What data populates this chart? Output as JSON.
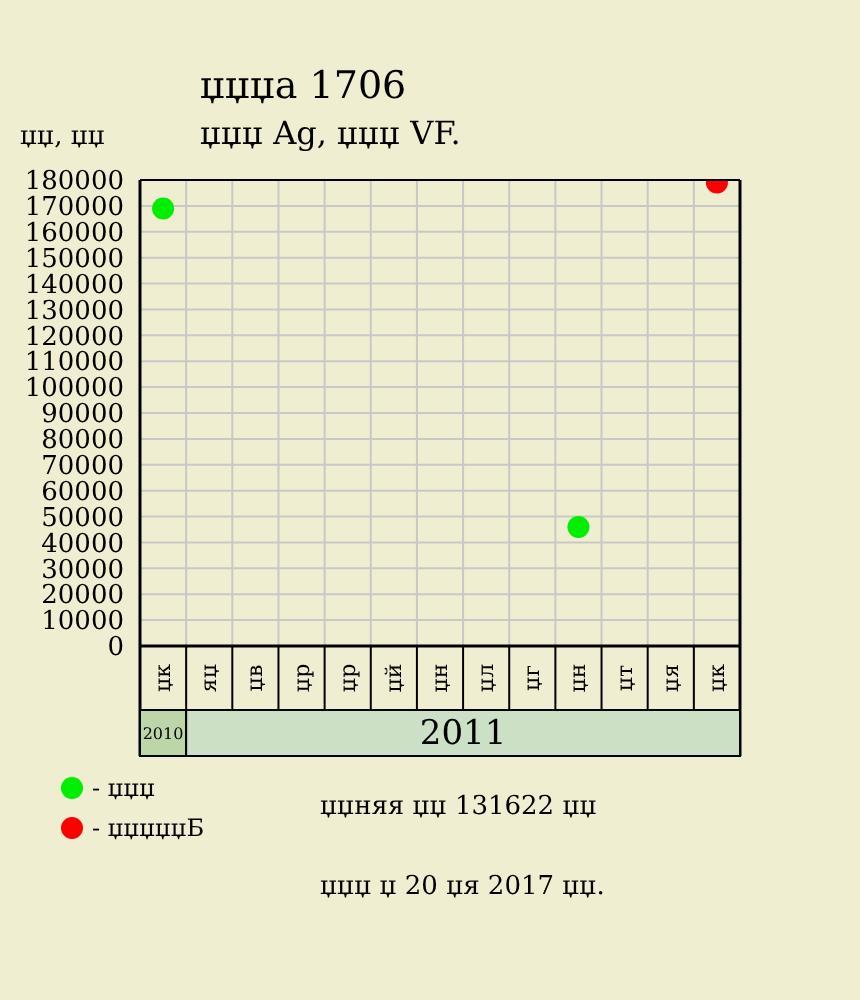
{
  "chart_data": {
    "type": "scatter",
    "title": "џџџа 1706",
    "subtitle": "џџџ Ag, џџџ VF.",
    "ylabel": "џџ, џџ",
    "categories": [
      "џк",
      "яџ",
      "џв",
      "џр",
      "џр",
      "џй",
      "џн",
      "џл",
      "џг",
      "џн",
      "џт",
      "џя",
      "џк"
    ],
    "ylim": [
      0,
      180000
    ],
    "yticks": [
      0,
      10000,
      20000,
      30000,
      40000,
      50000,
      60000,
      70000,
      80000,
      90000,
      100000,
      110000,
      120000,
      130000,
      140000,
      150000,
      160000,
      170000,
      180000
    ],
    "series": [
      {
        "name": "- џџџ",
        "color": "#00ee00",
        "values": [
          169000,
          null,
          null,
          null,
          null,
          null,
          null,
          null,
          null,
          46000,
          null,
          null,
          null
        ]
      },
      {
        "name": "- џџџџџБ",
        "color": "#ff0000",
        "values": [
          null,
          null,
          null,
          null,
          null,
          null,
          null,
          null,
          null,
          null,
          null,
          null,
          179000
        ]
      }
    ],
    "grid": true,
    "legend": "bottom left",
    "marker": "circle",
    "annotations": [
      "2010",
      "2011",
      "џџняя џџ 131622 џџ",
      "џџџ џ 20 џя 2017 џџ."
    ]
  }
}
